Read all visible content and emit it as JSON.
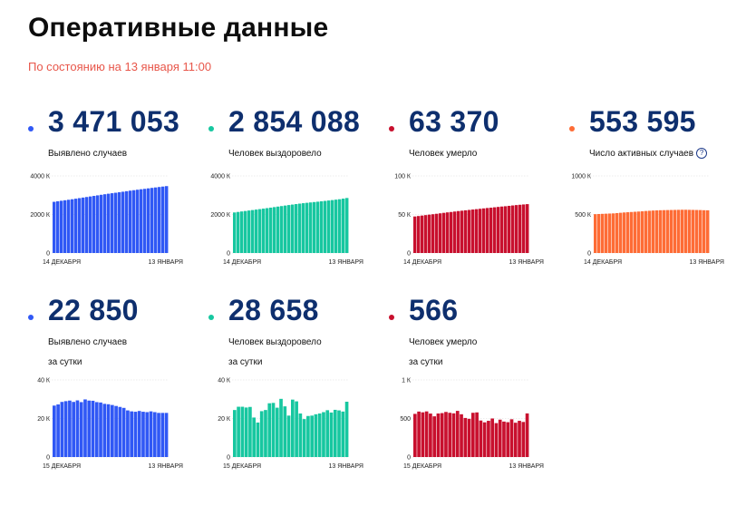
{
  "header": {
    "title": "Оперативные данные",
    "subtitle": "По состоянию на 13 января 11:00"
  },
  "cards": [
    {
      "value": "3 471 053",
      "label_lines": [
        "Выявлено случаев"
      ],
      "color": "#3058f5",
      "help": false,
      "chart_data": {
        "type": "bar",
        "title": "",
        "xlabel": "",
        "ylabel": "",
        "yticks": [
          "4000 К",
          "2000 К",
          "0"
        ],
        "ylim": [
          0,
          4000
        ],
        "x_start_label": "14 ДЕКАБРЯ",
        "x_end_label": "13 ЯНВАРЯ",
        "values": [
          2656,
          2684,
          2711,
          2737,
          2763,
          2790,
          2819,
          2848,
          2877,
          2906,
          2934,
          2963,
          2992,
          3021,
          3050,
          3077,
          3103,
          3127,
          3153,
          3180,
          3208,
          3236,
          3260,
          3285,
          3308,
          3330,
          3355,
          3379,
          3402,
          3425,
          3448,
          3471
        ]
      }
    },
    {
      "value": "2 854 088",
      "label_lines": [
        "Человек выздоровело"
      ],
      "color": "#17c7a0",
      "help": false,
      "chart_data": {
        "type": "bar",
        "title": "",
        "xlabel": "",
        "ylabel": "",
        "yticks": [
          "4000 К",
          "2000 К",
          "0"
        ],
        "ylim": [
          0,
          4000
        ],
        "x_start_label": "14 ДЕКАБРЯ",
        "x_end_label": "13 ЯНВАРЯ",
        "values": [
          2104,
          2131,
          2156,
          2180,
          2205,
          2229,
          2253,
          2278,
          2303,
          2329,
          2355,
          2382,
          2409,
          2436,
          2463,
          2489,
          2514,
          2539,
          2563,
          2585,
          2605,
          2624,
          2644,
          2663,
          2683,
          2704,
          2725,
          2747,
          2769,
          2791,
          2822,
          2854
        ]
      }
    },
    {
      "value": "63 370",
      "label_lines": [
        "Человек умерло"
      ],
      "color": "#c8102e",
      "help": false,
      "chart_data": {
        "type": "bar",
        "title": "",
        "xlabel": "",
        "ylabel": "",
        "yticks": [
          "100 К",
          "50 К",
          "0"
        ],
        "ylim": [
          0,
          100
        ],
        "x_start_label": "14 ДЕКАБРЯ",
        "x_end_label": "13 ЯНВАРЯ",
        "values": [
          47.4,
          48.0,
          48.6,
          49.2,
          49.8,
          50.3,
          50.9,
          51.5,
          52.1,
          52.7,
          53.2,
          53.8,
          54.4,
          54.9,
          55.4,
          55.9,
          56.4,
          56.9,
          57.4,
          57.9,
          58.4,
          58.8,
          59.3,
          59.8,
          60.3,
          60.7,
          61.2,
          61.7,
          62.2,
          62.6,
          63.0,
          63.4
        ]
      }
    },
    {
      "value": "553 595",
      "label_lines": [
        "Число активных случаев"
      ],
      "color": "#fe6c36",
      "help": true,
      "help_glyph": "?",
      "chart_data": {
        "type": "bar",
        "title": "",
        "xlabel": "",
        "ylabel": "",
        "yticks": [
          "1000 К",
          "500 К",
          "0"
        ],
        "ylim": [
          0,
          1000
        ],
        "x_start_label": "14 ДЕКАБРЯ",
        "x_end_label": "13 ЯНВАРЯ",
        "values": [
          504,
          506,
          508,
          510,
          512,
          514,
          518,
          522,
          526,
          529,
          532,
          535,
          538,
          541,
          545,
          548,
          551,
          553,
          555,
          556,
          557,
          558,
          559,
          560,
          561,
          561,
          560,
          559,
          558,
          557,
          555,
          554
        ]
      }
    },
    {
      "value": "22 850",
      "label_lines": [
        "Выявлено случаев",
        "за сутки"
      ],
      "color": "#3058f5",
      "help": false,
      "chart_data": {
        "type": "bar",
        "title": "",
        "xlabel": "",
        "ylabel": "",
        "yticks": [
          "40 К",
          "20 К",
          "0"
        ],
        "ylim": [
          0,
          40
        ],
        "x_start_label": "15 ДЕКАБРЯ",
        "x_end_label": "13 ЯНВАРЯ",
        "values": [
          26.7,
          27.3,
          28.6,
          29.0,
          29.3,
          28.6,
          29.4,
          28.5,
          29.9,
          29.3,
          29.2,
          28.5,
          28.3,
          27.6,
          27.4,
          27.0,
          26.5,
          26.0,
          25.5,
          24.2,
          23.7,
          23.5,
          23.9,
          23.5,
          23.3,
          23.7,
          23.3,
          22.9,
          22.9,
          22.9
        ]
      }
    },
    {
      "value": "28 658",
      "label_lines": [
        "Человек выздоровело",
        "за сутки"
      ],
      "color": "#17c7a0",
      "help": false,
      "chart_data": {
        "type": "bar",
        "title": "",
        "xlabel": "",
        "ylabel": "",
        "yticks": [
          "40 К",
          "20 К",
          "0"
        ],
        "ylim": [
          0,
          40
        ],
        "x_start_label": "15 ДЕКАБРЯ",
        "x_end_label": "13 ЯНВАРЯ",
        "values": [
          24.4,
          26.1,
          26.1,
          25.7,
          26.0,
          20.5,
          17.9,
          23.8,
          24.4,
          27.9,
          28.1,
          25.6,
          30.2,
          26.3,
          21.5,
          29.8,
          28.9,
          22.6,
          19.7,
          21.3,
          21.5,
          22.2,
          22.6,
          23.3,
          24.3,
          23.1,
          24.5,
          24.2,
          23.6,
          28.7
        ]
      }
    },
    {
      "value": "566",
      "label_lines": [
        "Человек умерло",
        "за сутки"
      ],
      "color": "#c8102e",
      "help": false,
      "chart_data": {
        "type": "bar",
        "title": "",
        "xlabel": "",
        "ylabel": "",
        "yticks": [
          "1 К",
          "500",
          "0"
        ],
        "ylim": [
          0,
          1000
        ],
        "x_start_label": "15 ДЕКАБРЯ",
        "x_end_label": "13 ЯНВАРЯ",
        "values": [
          560,
          590,
          580,
          592,
          564,
          528,
          565,
          570,
          585,
          574,
          567,
          599,
          555,
          507,
          496,
          574,
          579,
          474,
          450,
          470,
          500,
          440,
          485,
          460,
          452,
          490,
          445,
          470,
          455,
          566
        ]
      }
    }
  ]
}
